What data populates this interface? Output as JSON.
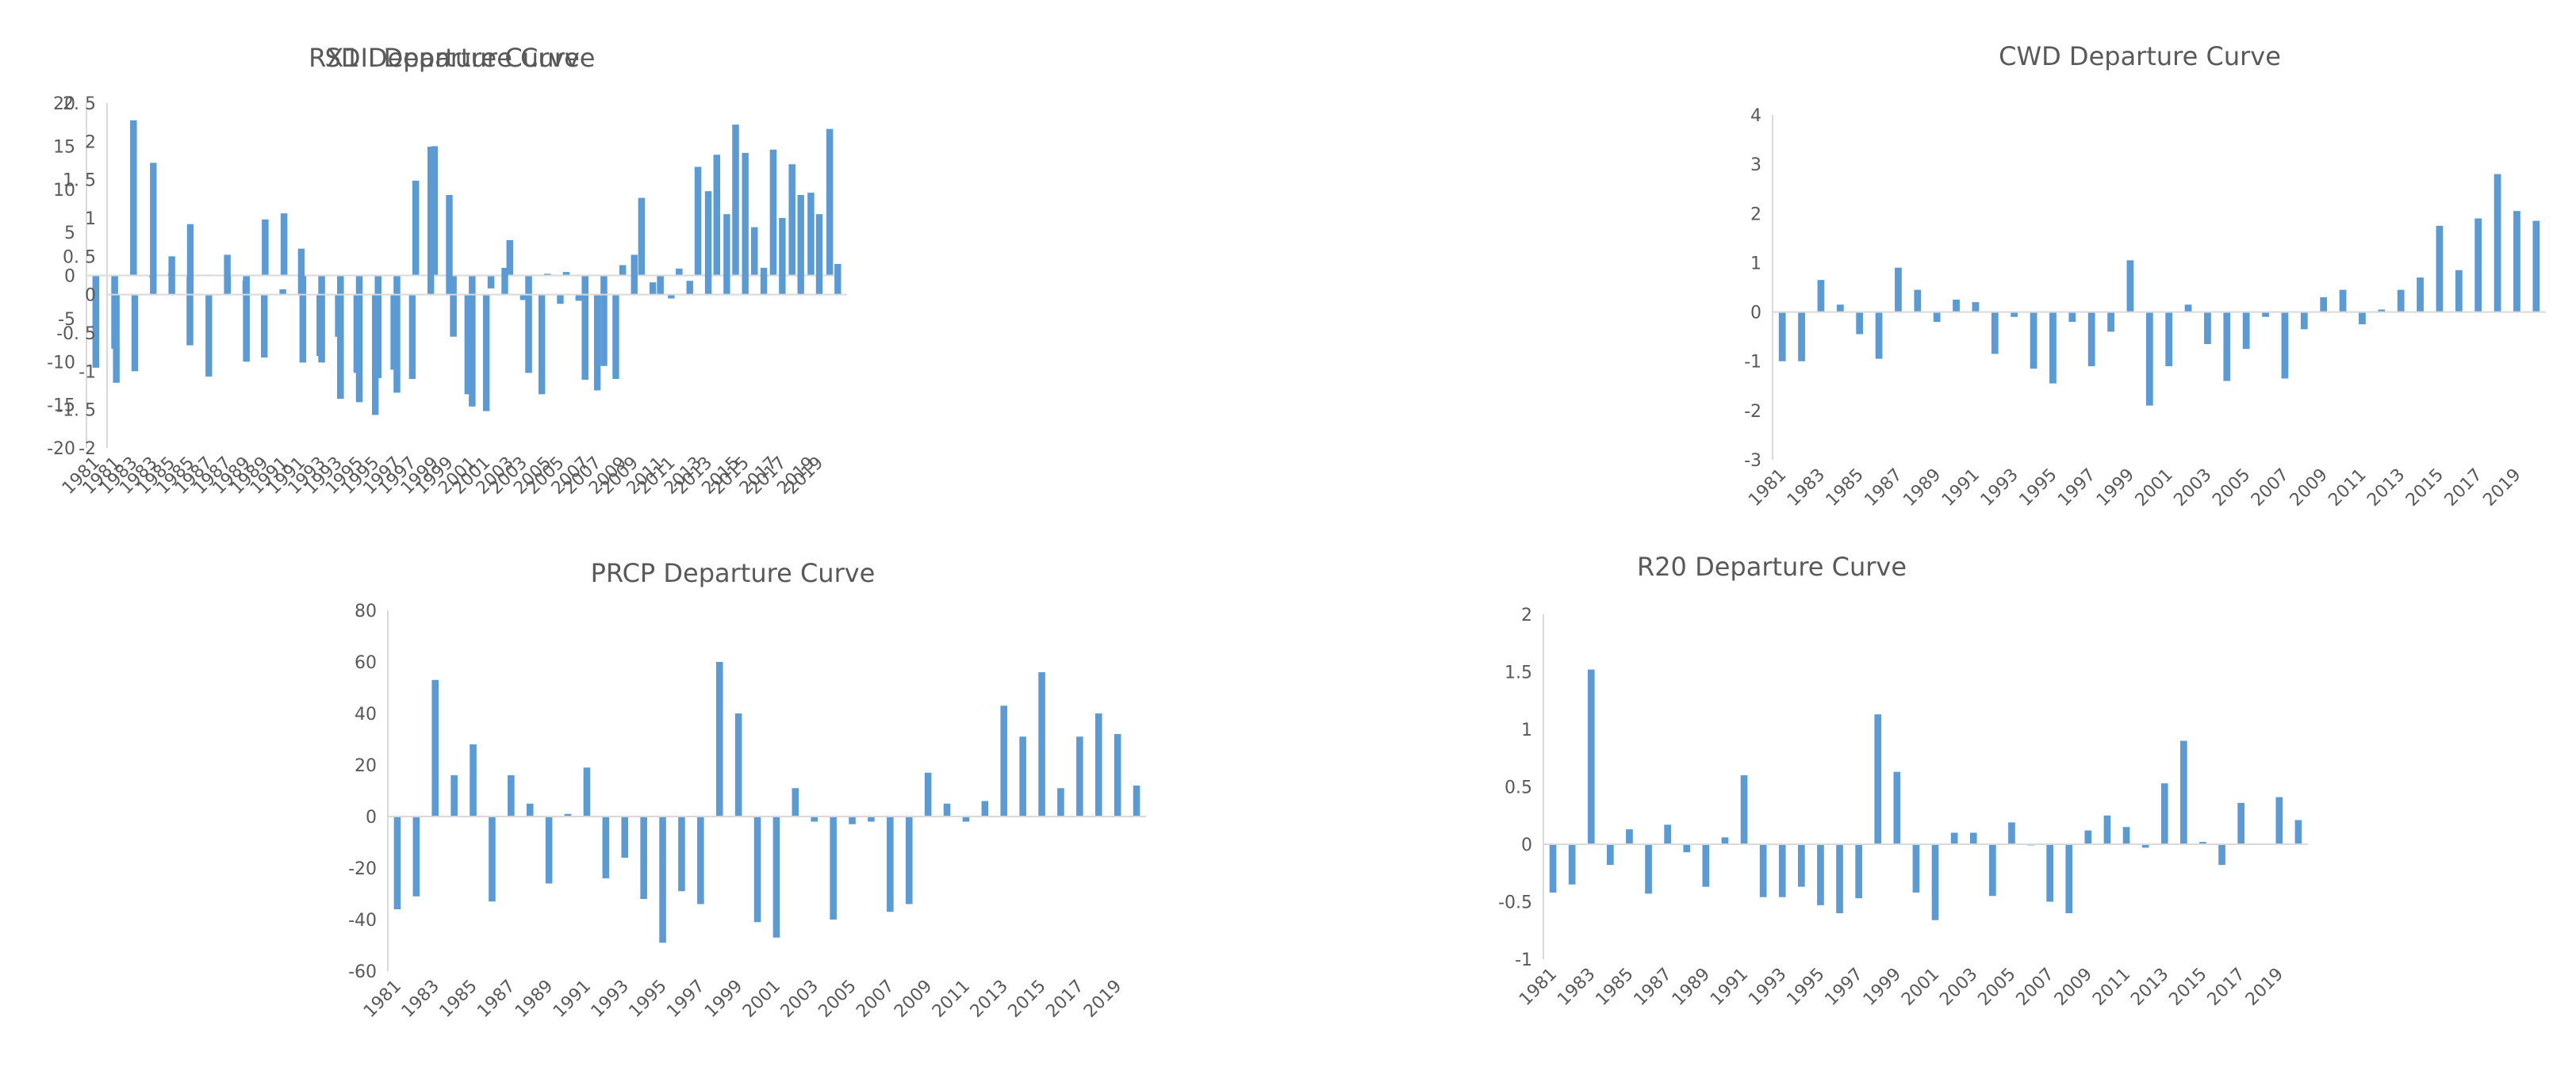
{
  "colors": {
    "bar": "#5b9bd5",
    "axis": "#d9d9d9",
    "text": "#595959"
  },
  "years": [
    1981,
    1982,
    1983,
    1984,
    1985,
    1986,
    1987,
    1988,
    1989,
    1990,
    1991,
    1992,
    1993,
    1994,
    1995,
    1996,
    1997,
    1998,
    1999,
    2000,
    2001,
    2002,
    2003,
    2004,
    2005,
    2006,
    2007,
    2008,
    2009,
    2010,
    2011,
    2012,
    2013,
    2014,
    2015,
    2016,
    2017,
    2018,
    2019,
    2020
  ],
  "chart_data": [
    {
      "id": "rx1",
      "type": "bar",
      "title": "RX1 Departure Curve",
      "xlabel": "",
      "ylabel": "",
      "ylim": [
        -20,
        20
      ],
      "yticks": [
        20,
        15,
        10,
        5,
        0,
        -5,
        -10,
        -15,
        -20
      ],
      "xtick_labels": [
        "1981",
        "1983",
        "1985",
        "1987",
        "1989",
        "1991",
        "1993",
        "1995",
        "1997",
        "1999",
        "2001",
        "2003",
        "2005",
        "2007",
        "2009",
        "2011",
        "2013",
        "2015",
        "2017",
        "2019"
      ],
      "values": [
        -10.7,
        -8.5,
        18,
        -0.2,
        0.2,
        -8.1,
        0.1,
        -2,
        -10,
        6.5,
        7.2,
        -10.1,
        -10.1,
        -14.3,
        -14.7,
        -11.9,
        -13.6,
        11,
        15,
        -7.1,
        -15.2,
        -1.5,
        4.1,
        -11.3,
        0.2,
        0.4,
        -12.1,
        -10.5,
        1.2,
        9,
        -2.2,
        0.8,
        12.6,
        14,
        17.5,
        5.6,
        14.6,
        12.9,
        9.6,
        17
      ]
    },
    {
      "id": "sdii",
      "type": "bar",
      "title": "SDII Departure Curve",
      "xlabel": "",
      "ylabel": "",
      "ylim": [
        -2,
        2.5
      ],
      "yticks": [
        "2. 5",
        "2",
        "1. 5",
        "1",
        "0. 5",
        "0",
        "-0. 5",
        "-1",
        "-1. 5",
        "-2"
      ],
      "ytick_values": [
        2.5,
        2,
        1.5,
        1,
        0.5,
        0,
        -0.5,
        -1,
        -1.5,
        -2
      ],
      "xtick_labels": [
        "1981",
        "1983",
        "1985",
        "1987",
        "1989",
        "1991",
        "1993",
        "1995",
        "1997",
        "1999",
        "2001",
        "2003",
        "2005",
        "2007",
        "2009",
        "2011",
        "2013",
        "2015",
        "2017",
        "2019"
      ],
      "values": [
        -1.15,
        -1,
        1.72,
        0.5,
        0.92,
        -1.07,
        0.52,
        0.18,
        -0.82,
        0.07,
        0.6,
        -0.8,
        -0.55,
        -1.02,
        -1.57,
        -0.98,
        -1.1,
        1.93,
        1.3,
        -1.3,
        -1.52,
        0.35,
        -0.07,
        -1.3,
        -0.12,
        -0.08,
        -1.25,
        -1.1,
        0.52,
        0.16,
        -0.05,
        0.18,
        1.35,
        1.05,
        1.85,
        0.35,
        1,
        1.3,
        1.05,
        0.4
      ]
    },
    {
      "id": "cwd",
      "type": "bar",
      "title": "CWD Departure Curve",
      "xlabel": "",
      "ylabel": "",
      "ylim": [
        -3,
        4
      ],
      "yticks": [
        4,
        3,
        2,
        1,
        0,
        -1,
        -2,
        -3
      ],
      "xtick_labels": [
        "1981",
        "1983",
        "1985",
        "1987",
        "1989",
        "1991",
        "1993",
        "1995",
        "1997",
        "1999",
        "2001",
        "2003",
        "2005",
        "2007",
        "2009",
        "2011",
        "2013",
        "2015",
        "2017",
        "2019"
      ],
      "values": [
        -1,
        -1,
        0.65,
        0.15,
        -0.45,
        -0.95,
        0.9,
        0.45,
        -0.2,
        0.25,
        0.2,
        -0.85,
        -0.1,
        -1.15,
        -1.45,
        -0.2,
        -1.1,
        -0.4,
        1.05,
        -1.9,
        -1.1,
        0.15,
        -0.65,
        -1.4,
        -0.75,
        -0.1,
        -1.35,
        -0.35,
        0.3,
        0.45,
        -0.25,
        0.05,
        0.45,
        0.7,
        1.75,
        0.85,
        1.9,
        2.8,
        2.05,
        1.85
      ]
    },
    {
      "id": "prcp",
      "type": "bar",
      "title": "PRCP Departure Curve",
      "xlabel": "",
      "ylabel": "",
      "ylim": [
        -60,
        80
      ],
      "yticks": [
        80,
        60,
        40,
        20,
        0,
        -20,
        -40,
        -60
      ],
      "xtick_labels": [
        "1981",
        "1983",
        "1985",
        "1987",
        "1989",
        "1991",
        "1993",
        "1995",
        "1997",
        "1999",
        "2001",
        "2003",
        "2005",
        "2007",
        "2009",
        "2011",
        "2013",
        "2015",
        "2017",
        "2019"
      ],
      "values": [
        -36,
        -31,
        53,
        16,
        28,
        -33,
        16,
        5,
        -26,
        1,
        19,
        -24,
        -16,
        -32,
        -49,
        -29,
        -34,
        60,
        40,
        -41,
        -47,
        11,
        -2,
        -40,
        -3,
        -2,
        -37,
        -34,
        17,
        5,
        -2,
        6,
        43,
        31,
        56,
        11,
        31,
        40,
        32,
        12
      ]
    },
    {
      "id": "r20",
      "type": "bar",
      "title": "R20 Departure Curve",
      "xlabel": "",
      "ylabel": "",
      "ylim": [
        -1,
        2
      ],
      "yticks": [
        2,
        1.5,
        1,
        0.5,
        0,
        -0.5,
        -1
      ],
      "xtick_labels": [
        "1981",
        "1983",
        "1985",
        "1987",
        "1989",
        "1991",
        "1993",
        "1995",
        "1997",
        "1999",
        "2001",
        "2003",
        "2005",
        "2007",
        "2009",
        "2011",
        "2013",
        "2015",
        "2017",
        "2019"
      ],
      "values": [
        -0.42,
        -0.35,
        1.52,
        -0.18,
        0.13,
        -0.43,
        0.17,
        -0.07,
        -0.37,
        0.06,
        0.6,
        -0.46,
        -0.46,
        -0.37,
        -0.53,
        -0.6,
        -0.47,
        1.13,
        0.63,
        -0.42,
        -0.66,
        0.1,
        0.1,
        -0.45,
        0.19,
        -0.01,
        -0.5,
        -0.6,
        0.12,
        0.25,
        0.15,
        -0.03,
        0.53,
        0.9,
        0.02,
        -0.18,
        0.36,
        0,
        0.41,
        0.21
      ]
    }
  ]
}
